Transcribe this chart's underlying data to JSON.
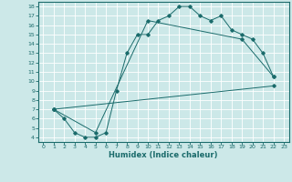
{
  "xlabel": "Humidex (Indice chaleur)",
  "background_color": "#cce8e8",
  "grid_color": "#ffffff",
  "line_color": "#1a6b6b",
  "xlim": [
    -0.5,
    23.5
  ],
  "ylim": [
    3.5,
    18.5
  ],
  "xticks": [
    0,
    1,
    2,
    3,
    4,
    5,
    6,
    7,
    8,
    9,
    10,
    11,
    12,
    13,
    14,
    15,
    16,
    17,
    18,
    19,
    20,
    21,
    22,
    23
  ],
  "yticks": [
    4,
    5,
    6,
    7,
    8,
    9,
    10,
    11,
    12,
    13,
    14,
    15,
    16,
    17,
    18
  ],
  "series": [
    {
      "x": [
        1,
        2,
        3,
        4,
        5,
        6,
        7,
        8,
        9,
        10,
        11,
        12,
        13,
        14,
        15,
        16,
        17,
        18,
        19,
        20,
        21,
        22
      ],
      "y": [
        7,
        6,
        4.5,
        4,
        4,
        4.5,
        9,
        13,
        15,
        15,
        16.5,
        17,
        18,
        18,
        17,
        16.5,
        17,
        15.5,
        15,
        14.5,
        13,
        10.5
      ]
    },
    {
      "x": [
        1,
        5,
        10,
        19,
        22
      ],
      "y": [
        7,
        4.5,
        16.5,
        14.5,
        10.5
      ]
    },
    {
      "x": [
        1,
        22
      ],
      "y": [
        7,
        9.5
      ]
    }
  ]
}
